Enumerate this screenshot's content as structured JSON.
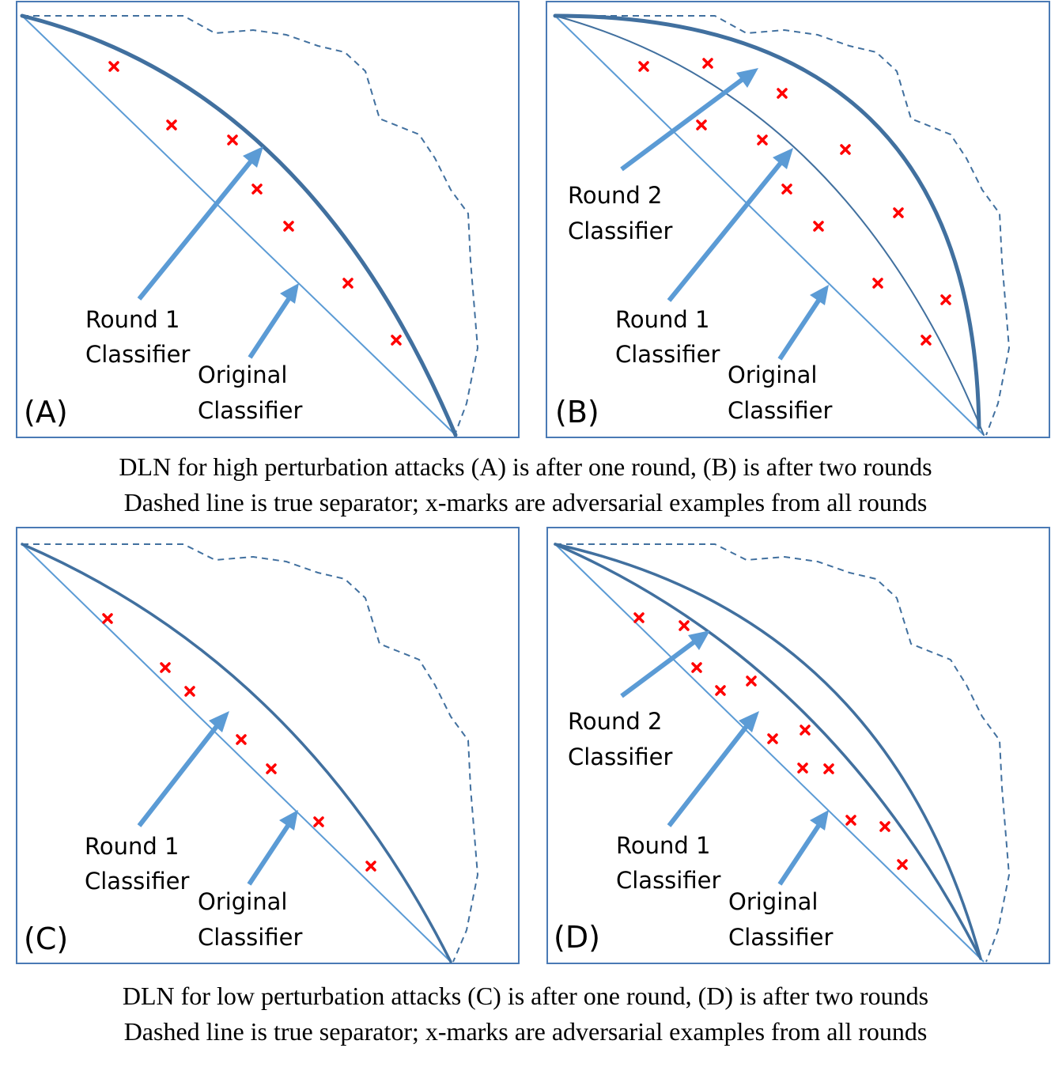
{
  "panels": [
    {
      "letter": "(A)",
      "labels": {
        "round2": [],
        "round1": [
          "Round 1",
          "Classifier"
        ],
        "original": [
          "Original",
          "Classifier"
        ]
      }
    },
    {
      "letter": "(B)",
      "labels": {
        "round2": [
          "Round 2",
          "Classifier"
        ],
        "round1": [
          "Round 1",
          "Classifier"
        ],
        "original": [
          "Original",
          "Classifier"
        ]
      }
    },
    {
      "letter": "(C)",
      "labels": {
        "round2": [],
        "round1": [
          "Round 1",
          "Classifier"
        ],
        "original": [
          "Original",
          "Classifier"
        ]
      }
    },
    {
      "letter": "(D)",
      "labels": {
        "round2": [
          "Round 2",
          "Classifier"
        ],
        "round1": [
          "Round 1",
          "Classifier"
        ],
        "original": [
          "Original",
          "Classifier"
        ]
      }
    }
  ],
  "captions": {
    "top": [
      "DLN for high perturbation attacks (A) is after one round, (B) is after two rounds",
      "Dashed line is true separator; x-marks are adversarial examples from all rounds"
    ],
    "bottom": [
      "DLN for low perturbation attacks (C) is after one round, (D) is after two rounds",
      "Dashed line is true separator; x-marks are adversarial examples from all rounds"
    ]
  },
  "colors": {
    "frame": "#4a7ab5",
    "original_classifier": "#5b9bd5",
    "round_classifier": "#41709f",
    "adversarial_marks": "#ff0000",
    "arrows": "#5b9bd5"
  }
}
